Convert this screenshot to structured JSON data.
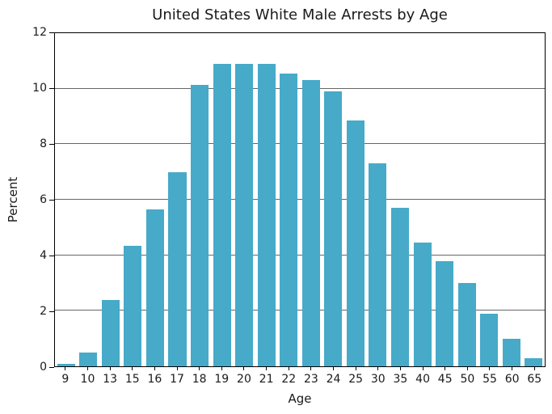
{
  "chart_data": {
    "type": "bar",
    "title": "United States White Male Arrests by Age",
    "xlabel": "Age",
    "ylabel": "Percent",
    "categories": [
      "9",
      "10",
      "13",
      "15",
      "16",
      "17",
      "18",
      "19",
      "20",
      "21",
      "22",
      "23",
      "24",
      "25",
      "30",
      "35",
      "40",
      "45",
      "50",
      "55",
      "60",
      "65"
    ],
    "values": [
      0.1,
      0.5,
      2.4,
      4.35,
      5.65,
      7.0,
      10.15,
      10.9,
      10.9,
      10.9,
      10.55,
      10.3,
      9.9,
      8.85,
      7.3,
      5.7,
      4.45,
      3.8,
      3.0,
      1.9,
      1.0,
      0.3
    ],
    "ylim": [
      0,
      12
    ],
    "yticks": [
      0,
      2,
      4,
      6,
      8,
      10,
      12
    ],
    "grid": true,
    "grid_axis": "y",
    "legend": false,
    "bar_color": "#46aac8",
    "grid_color": "#666666",
    "spine_color": "#000000",
    "text_color": "#1a1a1a"
  }
}
